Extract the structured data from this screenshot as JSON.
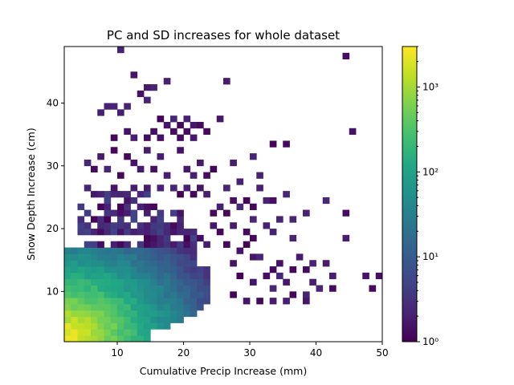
{
  "chart_data": {
    "type": "heatmap",
    "title": "PC and SD increases for whole dataset",
    "xlabel": "Cumulative Precip Increase (mm)",
    "ylabel": "Snow Depth Increase (cm)",
    "xlim": [
      2,
      50
    ],
    "ylim": [
      2,
      49
    ],
    "xticks": [
      10,
      20,
      30,
      40,
      50
    ],
    "yticks": [
      10,
      20,
      30,
      40
    ],
    "bin_width_x": 1,
    "bin_width_y": 1,
    "grid": false,
    "colormap": "viridis",
    "color_scale": "log",
    "colorbar": {
      "min": 1,
      "max": 3000,
      "ticks": [
        1,
        10,
        100,
        1000
      ],
      "tick_labels": [
        "10⁰",
        "10¹",
        "10²",
        "10³"
      ]
    },
    "dense_region_model": {
      "description_note": "",
      "peak_count": 3000,
      "peak_at": [
        2.5,
        2.5
      ],
      "max_x_edge_by_row": [
        [
          2,
          15
        ],
        [
          3,
          15
        ],
        [
          4,
          18
        ],
        [
          5,
          20
        ],
        [
          6,
          22
        ],
        [
          7,
          23
        ],
        [
          8,
          24
        ],
        [
          9,
          24
        ],
        [
          10,
          24
        ],
        [
          11,
          24
        ],
        [
          12,
          24
        ],
        [
          13,
          24
        ],
        [
          14,
          22
        ],
        [
          15,
          22
        ],
        [
          16,
          22
        ]
      ]
    },
    "sparse_points": [
      [
        10,
        48
      ],
      [
        44,
        47
      ],
      [
        12,
        44
      ],
      [
        17,
        43
      ],
      [
        14,
        42
      ],
      [
        15,
        42
      ],
      [
        26,
        43
      ],
      [
        13,
        41
      ],
      [
        14,
        40
      ],
      [
        8,
        39
      ],
      [
        9,
        39
      ],
      [
        11,
        39
      ],
      [
        7,
        38
      ],
      [
        10,
        38
      ],
      [
        16,
        37
      ],
      [
        20,
        37
      ],
      [
        18,
        37
      ],
      [
        19,
        36
      ],
      [
        21,
        36
      ],
      [
        25,
        37
      ],
      [
        17,
        36
      ],
      [
        22,
        36
      ],
      [
        11,
        35
      ],
      [
        15,
        35
      ],
      [
        18,
        35
      ],
      [
        20,
        35
      ],
      [
        23,
        35
      ],
      [
        14,
        34
      ],
      [
        16,
        34
      ],
      [
        21,
        34
      ],
      [
        45,
        35
      ],
      [
        9,
        34
      ],
      [
        12,
        34
      ],
      [
        19,
        34
      ],
      [
        33,
        33
      ],
      [
        35,
        33
      ],
      [
        9,
        32
      ],
      [
        14,
        32
      ],
      [
        19,
        32
      ],
      [
        7,
        31
      ],
      [
        11,
        31
      ],
      [
        16,
        31
      ],
      [
        30,
        31
      ],
      [
        5,
        30
      ],
      [
        12,
        30
      ],
      [
        22,
        30
      ],
      [
        27,
        30
      ],
      [
        6,
        29
      ],
      [
        8,
        29
      ],
      [
        13,
        29
      ],
      [
        15,
        29
      ],
      [
        20,
        29
      ],
      [
        24,
        29
      ],
      [
        10,
        28
      ],
      [
        17,
        28
      ],
      [
        21,
        28
      ],
      [
        23,
        28
      ],
      [
        31,
        28
      ],
      [
        28,
        27
      ],
      [
        5,
        26
      ],
      [
        9,
        26
      ],
      [
        12,
        26
      ],
      [
        14,
        26
      ],
      [
        16,
        26
      ],
      [
        18,
        26
      ],
      [
        20,
        26
      ],
      [
        22,
        26
      ],
      [
        26,
        26
      ],
      [
        31,
        26
      ],
      [
        7,
        25
      ],
      [
        11,
        25
      ],
      [
        19,
        25
      ],
      [
        21,
        25
      ],
      [
        23,
        25
      ],
      [
        35,
        25
      ],
      [
        41,
        24
      ],
      [
        27,
        24
      ],
      [
        29,
        24
      ],
      [
        32,
        24
      ],
      [
        33,
        24
      ],
      [
        25,
        23
      ],
      [
        28,
        23
      ],
      [
        30,
        23
      ],
      [
        44,
        22
      ],
      [
        38,
        22
      ],
      [
        24,
        22
      ],
      [
        26,
        22
      ],
      [
        30,
        21
      ],
      [
        34,
        21
      ],
      [
        36,
        21
      ],
      [
        24,
        20
      ],
      [
        27,
        20
      ],
      [
        32,
        20
      ],
      [
        25,
        19
      ],
      [
        33,
        19
      ],
      [
        29,
        19
      ],
      [
        30,
        18
      ],
      [
        36,
        18
      ],
      [
        44,
        18
      ],
      [
        29,
        17
      ],
      [
        22,
        18
      ],
      [
        23,
        17
      ],
      [
        26,
        17
      ],
      [
        28,
        16
      ],
      [
        30,
        15
      ],
      [
        31,
        15
      ],
      [
        37,
        15
      ],
      [
        41,
        14
      ],
      [
        39,
        14
      ],
      [
        27,
        14
      ],
      [
        34,
        14
      ],
      [
        33,
        13
      ],
      [
        36,
        13
      ],
      [
        38,
        13
      ],
      [
        47,
        12
      ],
      [
        49,
        12
      ],
      [
        42,
        12
      ],
      [
        28,
        12
      ],
      [
        32,
        12
      ],
      [
        34,
        12
      ],
      [
        30,
        11
      ],
      [
        35,
        11
      ],
      [
        39,
        11
      ],
      [
        40,
        10
      ],
      [
        42,
        10
      ],
      [
        48,
        10
      ],
      [
        33,
        10
      ],
      [
        36,
        9
      ],
      [
        38,
        9
      ],
      [
        27,
        9
      ],
      [
        29,
        8
      ],
      [
        31,
        8
      ],
      [
        33,
        8
      ],
      [
        35,
        8
      ],
      [
        38,
        8
      ]
    ],
    "sparse_counts_hint": "1-3"
  }
}
